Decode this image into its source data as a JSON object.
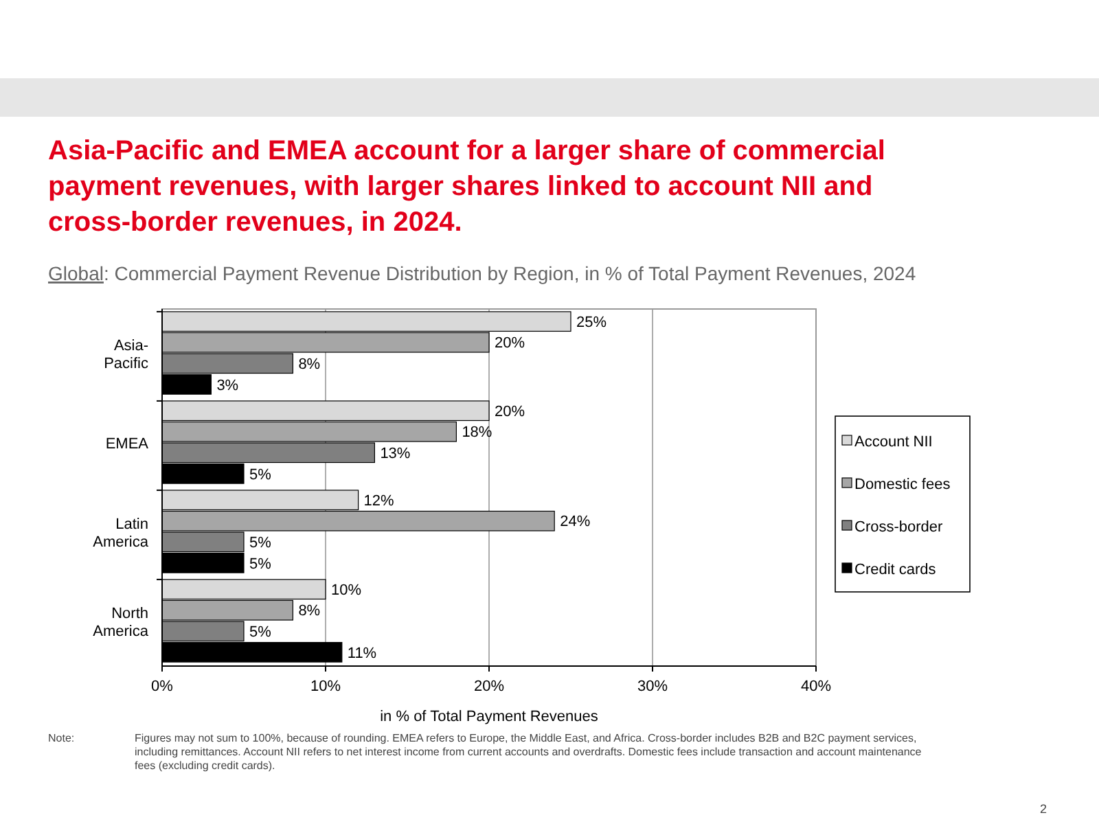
{
  "chart_data": {
    "type": "bar",
    "orientation": "horizontal",
    "title": "Asia-Pacific and EMEA account for a larger share of commercial payment revenues, with larger shares linked to account NII and cross-border revenues, in 2024.",
    "subtitle": "Global: Commercial Payment Revenue Distribution by Region, in % of Total Payment Revenues, 2024",
    "xlabel": "in % of Total Payment Revenues",
    "categories": [
      "Asia-Pacific",
      "EMEA",
      "Latin America",
      "North America"
    ],
    "series": [
      {
        "name": "Account NII",
        "color": "#d9d9d9",
        "values": [
          25,
          20,
          12,
          10
        ],
        "value_labels": [
          "25%",
          "20%",
          "12%",
          "10%"
        ]
      },
      {
        "name": "Domestic fees",
        "color": "#a6a6a6",
        "values": [
          20,
          18,
          24,
          8
        ],
        "value_labels": [
          "20%",
          "18%",
          "24%",
          "8%"
        ]
      },
      {
        "name": "Cross-border",
        "color": "#808080",
        "values": [
          8,
          13,
          5,
          5
        ],
        "value_labels": [
          "8%",
          "13%",
          "5%",
          "5%"
        ]
      },
      {
        "name": "Credit cards",
        "color": "#000000",
        "values": [
          3,
          5,
          5,
          11
        ],
        "value_labels": [
          "3%",
          "5%",
          "5%",
          "11%"
        ]
      }
    ],
    "xlim": [
      0,
      40
    ],
    "xticks": [
      {
        "value": 0,
        "label": "0%"
      },
      {
        "value": 10,
        "label": "10%"
      },
      {
        "value": 20,
        "label": "20%"
      },
      {
        "value": 30,
        "label": "30%"
      },
      {
        "value": 40,
        "label": "40%"
      }
    ],
    "grid": "x",
    "legend": "right",
    "annotations": [
      "Note: Figures may not sum to 100%, because of rounding. EMEA refers to Europe, the Middle East, and Africa. Cross-border includes B2B and B2C payment services, including remittances. Account NII refers to net interest income from current accounts and overdrafts. Domestic fees include transaction and account maintenance fees (excluding credit cards).",
      "2"
    ]
  }
}
